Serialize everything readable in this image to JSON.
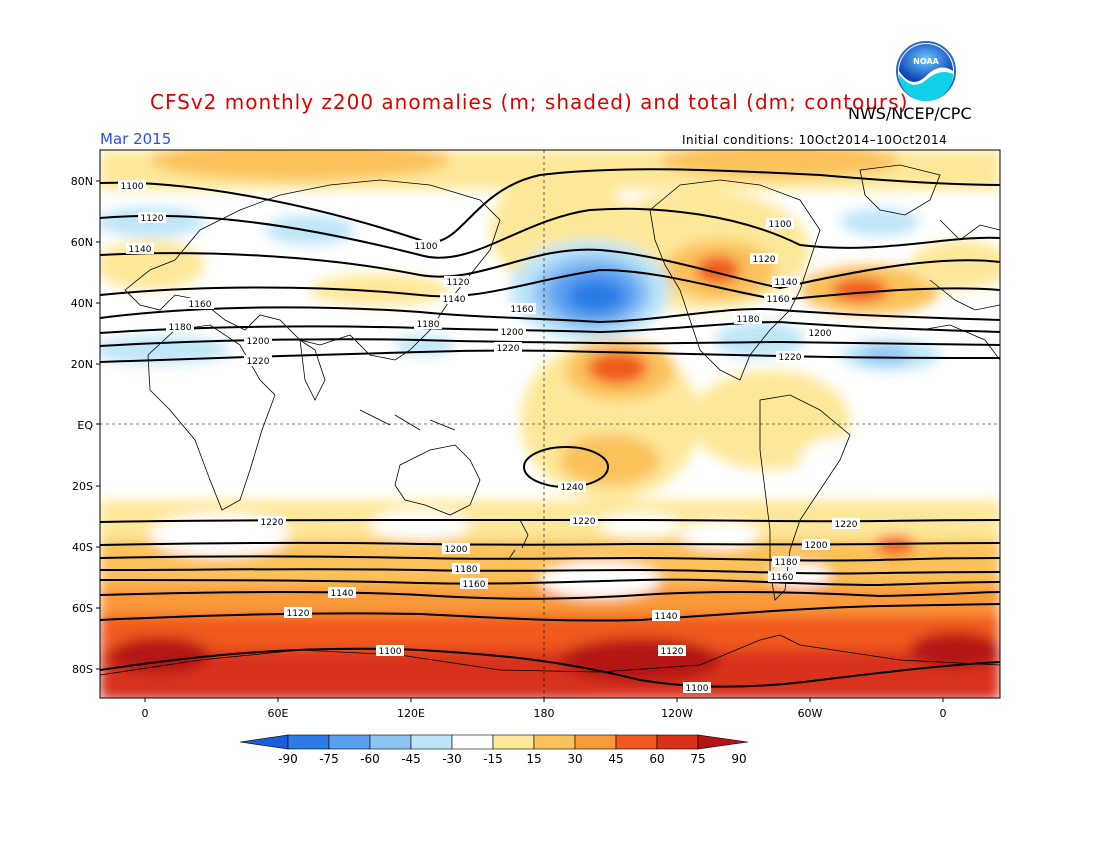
{
  "title": "CFSv2 monthly z200 anomalies (m; shaded) and total (dm; contours)",
  "agency": "NWS/NCEP/CPC",
  "logo_text": "NOAA",
  "month_label": "Mar 2015",
  "initial_conditions": "Initial conditions: 10Oct2014–10Oct2014",
  "lat_labels": [
    "80N",
    "60N",
    "40N",
    "20N",
    "EQ",
    "20S",
    "40S",
    "60S",
    "80S"
  ],
  "lon_labels": [
    "0",
    "60E",
    "120E",
    "180",
    "120W",
    "60W",
    "0"
  ],
  "colorbar": {
    "ticks": [
      "-90",
      "-75",
      "-60",
      "-45",
      "-30",
      "-15",
      "15",
      "30",
      "45",
      "60",
      "75",
      "90"
    ],
    "colors": [
      "#1a5cdc",
      "#2c7be6",
      "#5a9fee",
      "#8ec4f4",
      "#bfe6f8",
      "#ffffff",
      "#fde89a",
      "#fbc15a",
      "#f99a3a",
      "#f05a1e",
      "#d8321a",
      "#b41414"
    ]
  },
  "contour_labels": [
    "1100",
    "1120",
    "1140",
    "1160",
    "1180",
    "1200",
    "1220",
    "1100",
    "1120",
    "1140",
    "1160",
    "1180",
    "1200",
    "1220",
    "1100",
    "1120",
    "1140",
    "1160",
    "1180",
    "1200",
    "1220",
    "1240",
    "1220",
    "1200",
    "1180",
    "1160",
    "1140",
    "1120",
    "1100",
    "1220",
    "1200",
    "1180",
    "1160",
    "1140",
    "1120",
    "1100",
    "1220",
    "1200",
    "1180",
    "1160"
  ]
}
